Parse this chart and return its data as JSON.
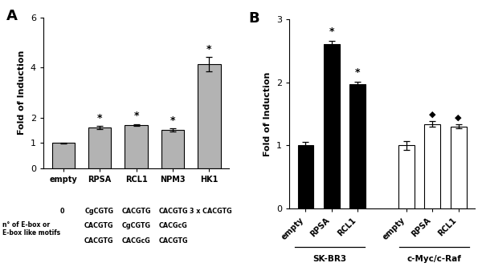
{
  "panel_A": {
    "categories": [
      "empty",
      "RPSA",
      "RCL1",
      "NPM3",
      "HK1"
    ],
    "values": [
      1.0,
      1.62,
      1.72,
      1.52,
      4.15
    ],
    "errors": [
      0.02,
      0.06,
      0.04,
      0.05,
      0.28
    ],
    "bar_color": "#b3b3b3",
    "ylabel": "Fold of Induction",
    "ylim": [
      0,
      6
    ],
    "yticks": [
      0,
      1,
      2,
      4,
      6
    ],
    "significance": [
      false,
      true,
      true,
      true,
      true
    ],
    "sig_symbol": "*",
    "motif_line1": [
      "",
      "CgCGTG",
      "CACGTG",
      "CACGTG",
      "3 x CACGTG"
    ],
    "motif_line2": [
      "",
      "CACGTG",
      "CgCGTG",
      "CACGcG",
      ""
    ],
    "motif_line3": [
      "",
      "CACGTG",
      "CACGcG",
      "CACGTG",
      ""
    ]
  },
  "panel_B": {
    "categories_SK": [
      "empty",
      "RPSA",
      "RCL1"
    ],
    "values_SK": [
      1.0,
      2.6,
      1.97
    ],
    "errors_SK": [
      0.06,
      0.055,
      0.04
    ],
    "categories_cMyc": [
      "empty",
      "RPSA",
      "RCL1"
    ],
    "values_cMyc": [
      1.0,
      1.34,
      1.3
    ],
    "errors_cMyc": [
      0.07,
      0.04,
      0.03
    ],
    "bar_color_SK": "#000000",
    "bar_color_cMyc": "#ffffff",
    "ylabel": "Fold of Induction",
    "ylim": [
      0,
      3
    ],
    "yticks": [
      0,
      1,
      2,
      3
    ],
    "sig_SK": [
      false,
      true,
      true
    ],
    "sig_cMyc": [
      false,
      true,
      true
    ],
    "sig_symbol_SK": "*",
    "sig_symbol_cMyc": "◆",
    "group_label_SK": "SK-BR3",
    "group_label_cMyc": "c-Myc/c-Raf"
  },
  "background_color": "#ffffff",
  "edge_color": "#000000"
}
